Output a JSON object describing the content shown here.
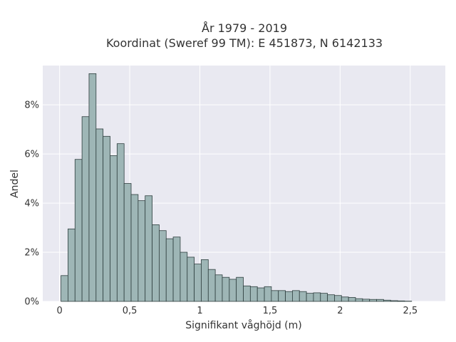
{
  "chart_data": {
    "type": "bar",
    "title": "År 1979 - 2019",
    "subtitle": "Koordinat (Sweref 99 TM): E 451873, N 6142133",
    "xlabel": "Signifikant våghöjd (m)",
    "ylabel": "Andel",
    "xlim": [
      -0.12,
      2.75
    ],
    "ylim": [
      0,
      9.6
    ],
    "x_ticks": [
      {
        "value": 0,
        "label": "0"
      },
      {
        "value": 0.5,
        "label": "0,5"
      },
      {
        "value": 1,
        "label": "1"
      },
      {
        "value": 1.5,
        "label": "1,5"
      },
      {
        "value": 2,
        "label": "2"
      },
      {
        "value": 2.5,
        "label": "2,5"
      }
    ],
    "y_ticks": [
      {
        "value": 0,
        "label": "0%"
      },
      {
        "value": 2,
        "label": "2%"
      },
      {
        "value": 4,
        "label": "4%"
      },
      {
        "value": 6,
        "label": "6%"
      },
      {
        "value": 8,
        "label": "8%"
      }
    ],
    "grid": true,
    "background_color": "#e9e9f1",
    "bar_color": "#9eb6b6",
    "bar_edge_color": "#2f3f3f",
    "bin_start": 0.01,
    "bin_width": 0.05,
    "values": [
      1.05,
      2.95,
      5.78,
      7.52,
      9.27,
      7.02,
      6.72,
      5.93,
      6.42,
      4.8,
      4.35,
      4.1,
      4.3,
      3.12,
      2.88,
      2.55,
      2.62,
      2.0,
      1.8,
      1.52,
      1.7,
      1.3,
      1.08,
      0.98,
      0.9,
      0.98,
      0.63,
      0.6,
      0.55,
      0.6,
      0.44,
      0.44,
      0.4,
      0.44,
      0.4,
      0.33,
      0.35,
      0.33,
      0.27,
      0.24,
      0.18,
      0.16,
      0.11,
      0.09,
      0.08,
      0.08,
      0.05,
      0.03,
      0.02,
      0.01
    ]
  }
}
